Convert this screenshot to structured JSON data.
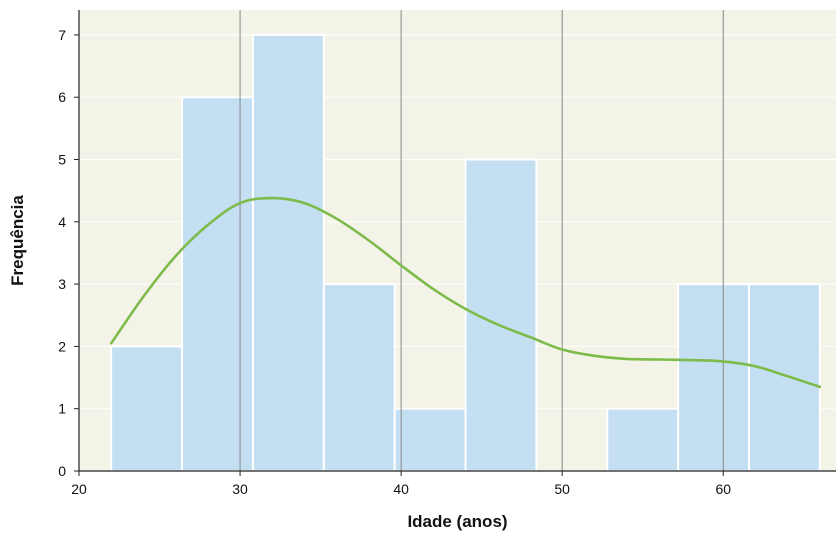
{
  "chart_data": {
    "type": "bar",
    "subtype": "histogram-with-density-curve",
    "xlabel": "Idade (anos)",
    "ylabel": "Frequência",
    "xlim": [
      20,
      67
    ],
    "ylim": [
      0,
      7.4
    ],
    "x_ticks": [
      20,
      30,
      40,
      50,
      60
    ],
    "y_ticks": [
      0,
      1,
      2,
      3,
      4,
      5,
      6,
      7
    ],
    "grid": {
      "vertical": true,
      "horizontal": true
    },
    "bins": [
      {
        "x0": 22.0,
        "x1": 26.4,
        "count": 2
      },
      {
        "x0": 26.4,
        "x1": 30.8,
        "count": 6
      },
      {
        "x0": 30.8,
        "x1": 35.2,
        "count": 7
      },
      {
        "x0": 35.2,
        "x1": 39.6,
        "count": 3
      },
      {
        "x0": 39.6,
        "x1": 44.0,
        "count": 1
      },
      {
        "x0": 44.0,
        "x1": 48.4,
        "count": 5
      },
      {
        "x0": 48.4,
        "x1": 52.8,
        "count": 0
      },
      {
        "x0": 52.8,
        "x1": 57.2,
        "count": 1
      },
      {
        "x0": 57.2,
        "x1": 61.6,
        "count": 3
      },
      {
        "x0": 61.6,
        "x1": 66.0,
        "count": 3
      }
    ],
    "density_curve": {
      "x": [
        22,
        24,
        26,
        28,
        30,
        32,
        34,
        36,
        38,
        40,
        42,
        44,
        46,
        48,
        50,
        52,
        54,
        56,
        58,
        60,
        62,
        64,
        66
      ],
      "y": [
        2.05,
        2.8,
        3.45,
        3.95,
        4.3,
        4.38,
        4.3,
        4.05,
        3.7,
        3.3,
        2.92,
        2.6,
        2.35,
        2.15,
        1.95,
        1.85,
        1.8,
        1.79,
        1.78,
        1.76,
        1.68,
        1.52,
        1.35
      ]
    },
    "colors": {
      "plot_background": "#f4f3e8",
      "bar_fill": "#c4def2",
      "bar_edge": "#ffffff",
      "curve": "#7dbb4a",
      "vertical_grid": "#888888",
      "horizontal_grid": "#ffffff",
      "axis": "#222222"
    }
  }
}
